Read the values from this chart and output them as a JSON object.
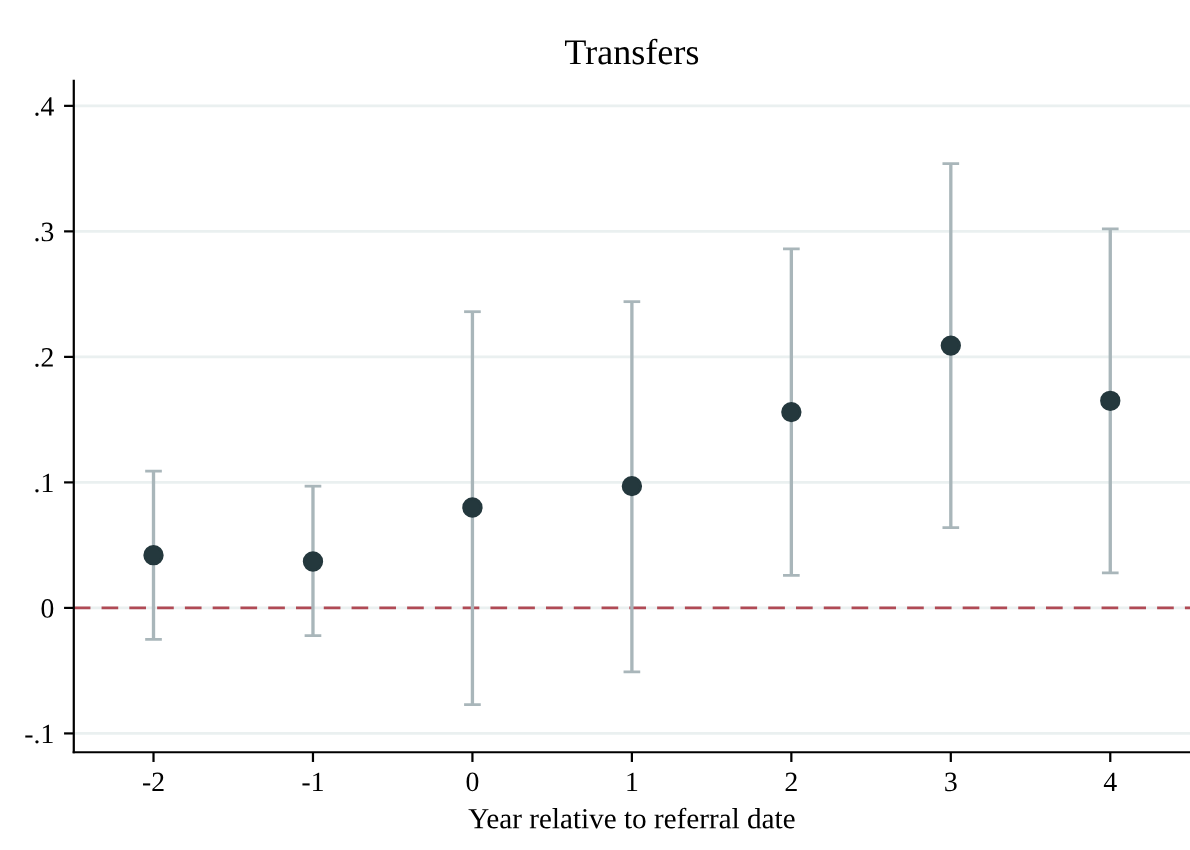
{
  "chart_data": {
    "type": "scatter",
    "title": "Transfers",
    "xlabel": "Year relative to referral date",
    "x": [
      -2,
      -1,
      0,
      1,
      2,
      3,
      4
    ],
    "series": [
      {
        "color": "#24383d",
        "values": [
          0.042,
          0.037,
          0.08,
          0.097,
          0.156,
          0.209,
          0.165
        ],
        "errors": [
          [
            -0.025,
            0.109
          ],
          [
            -0.022,
            0.097
          ],
          [
            -0.077,
            0.236
          ],
          [
            -0.051,
            0.244
          ],
          [
            0.026,
            0.286
          ],
          [
            0.064,
            0.354
          ],
          [
            0.028,
            0.302
          ]
        ]
      }
    ],
    "xlim": [
      -2.5,
      4.5
    ],
    "xticks": [
      -2,
      -1,
      0,
      1,
      2,
      3,
      4
    ],
    "ylim": [
      -0.115,
      0.42
    ],
    "yticks": [
      {
        "value": -0.1,
        "label": "-.1"
      },
      {
        "value": 0,
        "label": "0"
      },
      {
        "value": 0.1,
        "label": ".1"
      },
      {
        "value": 0.2,
        "label": ".2"
      },
      {
        "value": 0.3,
        "label": ".3"
      },
      {
        "value": 0.4,
        "label": ".4"
      }
    ],
    "ref_lines": [
      {
        "axis": "y",
        "value": 0,
        "color": "#b04a55",
        "line_style": "dashed"
      }
    ],
    "grid": "y",
    "marker": "circle",
    "legend": false
  }
}
